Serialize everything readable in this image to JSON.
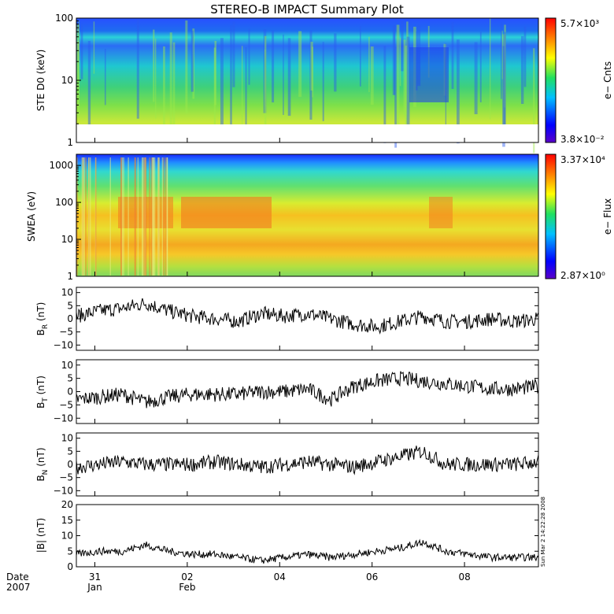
{
  "chart_data": {
    "title": "STEREO-B IMPACT Summary Plot",
    "type": "multi-panel time series",
    "x_axis": {
      "row_label": "Date",
      "year": "2007",
      "ticks": [
        {
          "day": "31",
          "month": "Jan"
        },
        {
          "day": "02",
          "month": "Feb"
        },
        {
          "day": "04",
          "month": ""
        },
        {
          "day": "06",
          "month": ""
        },
        {
          "day": "08",
          "month": ""
        }
      ],
      "range": [
        "2007-01-30",
        "2007-02-09"
      ]
    },
    "stamp": "Sun Mar  2 14:22:28 2008",
    "panels": [
      {
        "id": "ste",
        "type": "heatmap",
        "ylabel": "STE D0 (keV)",
        "yscale": "log",
        "ylim": [
          1,
          100
        ],
        "yticks": [
          "1",
          "10",
          "100"
        ],
        "colorbar": {
          "label": "e− Cnts",
          "max_label": "5.7×10³",
          "min_label": "3.8×10⁻²"
        }
      },
      {
        "id": "swea",
        "type": "heatmap",
        "ylabel": "SWEA (eV)",
        "yscale": "log",
        "ylim": [
          1,
          2000
        ],
        "yticks": [
          "1",
          "10",
          "100",
          "1000"
        ],
        "colorbar": {
          "label": "e− Flux",
          "max_label": "3.37×10⁴",
          "min_label": "2.87×10⁰"
        }
      },
      {
        "id": "br",
        "type": "line",
        "ylabel_main": "B",
        "ylabel_sub": "R",
        "ylabel_unit": " (nT)",
        "ylim": [
          -12,
          12
        ],
        "yticks": [
          "10",
          "5",
          "0",
          "−5",
          "−10"
        ],
        "series": [
          {
            "x_days": [
              0,
              0.5,
              1,
              1.5,
              2,
              2.5,
              3,
              3.5,
              4,
              4.5,
              5,
              5.5,
              6,
              6.5,
              7,
              7.5,
              8,
              8.5,
              9,
              9.5,
              10
            ],
            "values": [
              1,
              3,
              4,
              6,
              3,
              1,
              0,
              -1,
              2,
              1,
              2,
              0,
              -2,
              -3,
              -1,
              1,
              -1,
              -1,
              0,
              -1,
              0
            ]
          }
        ]
      },
      {
        "id": "bt",
        "type": "line",
        "ylabel_main": "B",
        "ylabel_sub": "T",
        "ylabel_unit": " (nT)",
        "ylim": [
          -12,
          12
        ],
        "yticks": [
          "10",
          "5",
          "0",
          "−5",
          "−10"
        ],
        "series": [
          {
            "x_days": [
              0,
              0.5,
              1,
              1.5,
              2,
              2.5,
              3,
              3.5,
              4,
              4.5,
              5,
              5.5,
              6,
              6.5,
              7,
              7.5,
              8,
              8.5,
              9,
              9.5,
              10
            ],
            "values": [
              -3,
              -2,
              -1,
              -4,
              -2,
              -1,
              -1,
              -1,
              0,
              0,
              1,
              -3,
              2,
              4,
              5,
              4,
              3,
              2,
              1,
              1,
              2
            ]
          }
        ]
      },
      {
        "id": "bn",
        "type": "line",
        "ylabel_main": "B",
        "ylabel_sub": "N",
        "ylabel_unit": " (nT)",
        "ylim": [
          -12,
          12
        ],
        "yticks": [
          "10",
          "5",
          "0",
          "−5",
          "−10"
        ],
        "series": [
          {
            "x_days": [
              0,
              0.5,
              1,
              1.5,
              2,
              2.5,
              3,
              3.5,
              4,
              4.5,
              5,
              5.5,
              6,
              6.5,
              7,
              7.5,
              8,
              8.5,
              9,
              9.5,
              10
            ],
            "values": [
              -1,
              0,
              1,
              0,
              0,
              0,
              1,
              0,
              -1,
              0,
              1,
              0,
              -1,
              1,
              3,
              5,
              0,
              0,
              0,
              0,
              1
            ]
          }
        ]
      },
      {
        "id": "bmag",
        "type": "line",
        "ylabel": "|B| (nT)",
        "ylim": [
          0,
          20
        ],
        "yticks": [
          "20",
          "15",
          "10",
          "5",
          "0"
        ],
        "series": [
          {
            "x_days": [
              0,
              0.5,
              1,
              1.5,
              2,
              2.5,
              3,
              3.5,
              4,
              4.5,
              5,
              5.5,
              6,
              6.5,
              7,
              7.5,
              8,
              8.5,
              9,
              9.5,
              10
            ],
            "values": [
              4,
              5,
              5,
              7,
              5,
              4,
              4,
              3,
              2,
              3,
              4,
              3,
              4,
              5,
              6,
              8,
              5,
              4,
              3,
              3,
              3
            ]
          }
        ]
      }
    ]
  }
}
